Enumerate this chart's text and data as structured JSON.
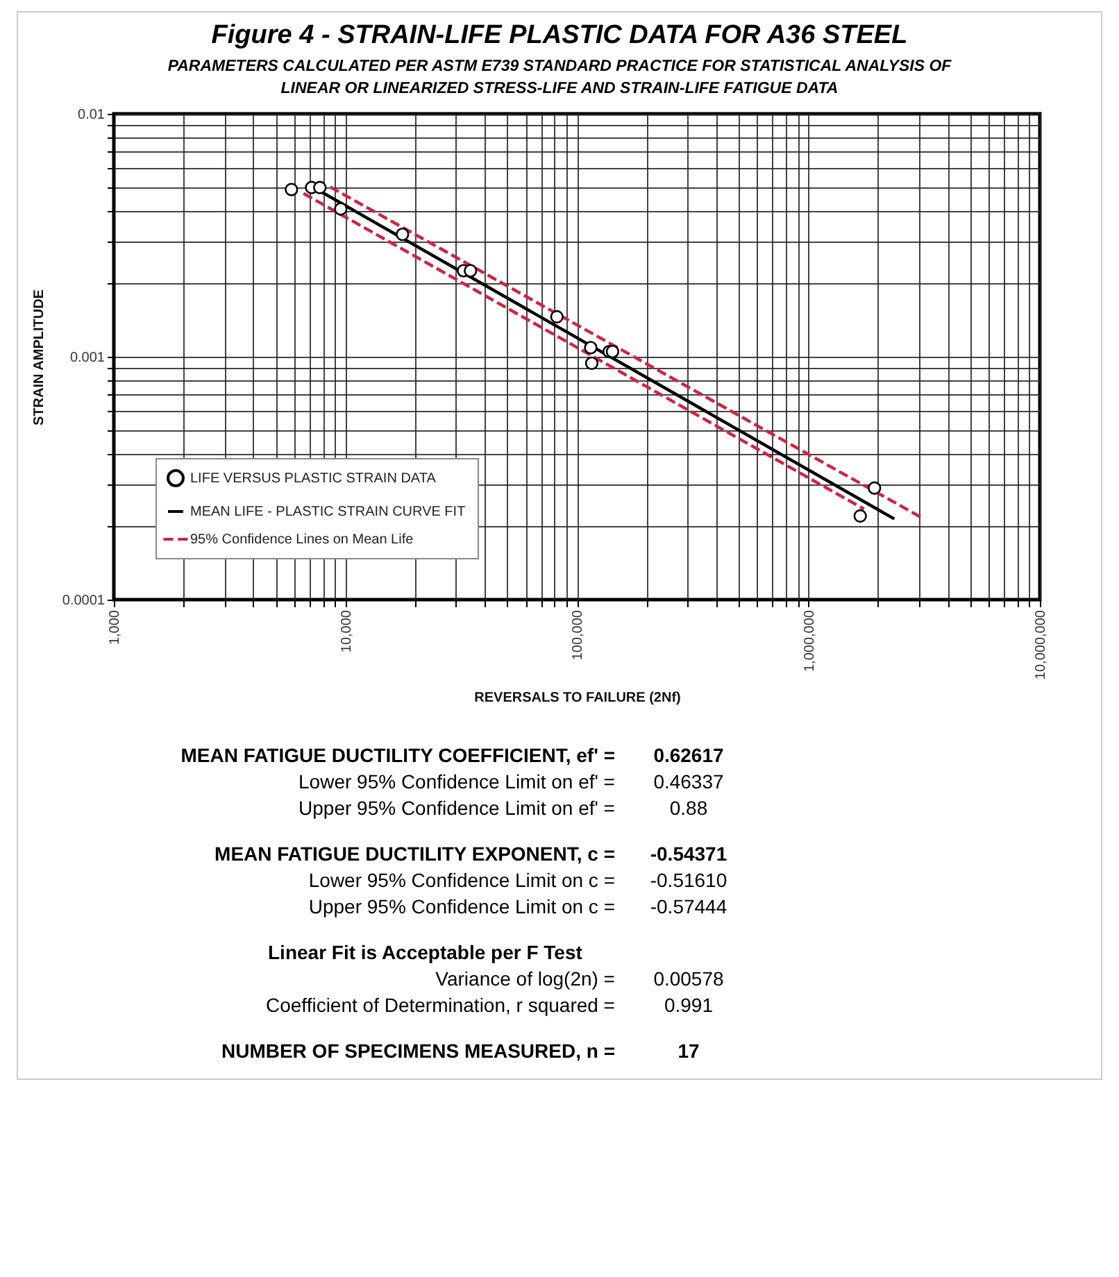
{
  "chart_data": {
    "type": "scatter",
    "title": "Figure 4 - STRAIN-LIFE PLASTIC DATA FOR A36 STEEL",
    "subtitle": "PARAMETERS CALCULATED PER ASTM E739 STANDARD PRACTICE FOR STATISTICAL ANALYSIS OF LINEAR OR LINEARIZED STRESS-LIFE AND STRAIN-LIFE FATIGUE DATA",
    "xlabel": "REVERSALS TO FAILURE (2Nf)",
    "ylabel": "STRAIN AMPLITUDE",
    "log": "xy",
    "grid": true,
    "legend": "bottom left",
    "xlim": [
      1000,
      10000000
    ],
    "ylim": [
      0.0001,
      0.01
    ],
    "xticks": [
      {
        "value": 1000,
        "label": "1,000"
      },
      {
        "value": 2000,
        "label": null
      },
      {
        "value": 3000,
        "label": null
      },
      {
        "value": 4000,
        "label": null
      },
      {
        "value": 5000,
        "label": null
      },
      {
        "value": 6000,
        "label": null
      },
      {
        "value": 7000,
        "label": null
      },
      {
        "value": 8000,
        "label": null
      },
      {
        "value": 9000,
        "label": null
      },
      {
        "value": 10000,
        "label": "10,000"
      },
      {
        "value": 20000,
        "label": null
      },
      {
        "value": 30000,
        "label": null
      },
      {
        "value": 40000,
        "label": null
      },
      {
        "value": 50000,
        "label": null
      },
      {
        "value": 60000,
        "label": null
      },
      {
        "value": 70000,
        "label": null
      },
      {
        "value": 80000,
        "label": null
      },
      {
        "value": 90000,
        "label": null
      },
      {
        "value": 100000,
        "label": "100,000"
      },
      {
        "value": 200000,
        "label": null
      },
      {
        "value": 300000,
        "label": null
      },
      {
        "value": 400000,
        "label": null
      },
      {
        "value": 500000,
        "label": null
      },
      {
        "value": 600000,
        "label": null
      },
      {
        "value": 700000,
        "label": null
      },
      {
        "value": 800000,
        "label": null
      },
      {
        "value": 900000,
        "label": null
      },
      {
        "value": 1000000,
        "label": "1,000,000"
      },
      {
        "value": 2000000,
        "label": null
      },
      {
        "value": 3000000,
        "label": null
      },
      {
        "value": 4000000,
        "label": null
      },
      {
        "value": 5000000,
        "label": null
      },
      {
        "value": 6000000,
        "label": null
      },
      {
        "value": 7000000,
        "label": null
      },
      {
        "value": 8000000,
        "label": null
      },
      {
        "value": 9000000,
        "label": null
      },
      {
        "value": 10000000,
        "label": "10,000,000"
      }
    ],
    "yticks": [
      0.0001,
      {
        "value": 0.0002,
        "label": null
      },
      {
        "value": 0.0003,
        "label": null
      },
      {
        "value": 0.0004,
        "label": null
      },
      {
        "value": 0.0005,
        "label": null
      },
      {
        "value": 0.0006,
        "label": null
      },
      {
        "value": 0.0007,
        "label": null
      },
      {
        "value": 0.0008,
        "label": null
      },
      {
        "value": 0.0009,
        "label": null
      },
      0.001,
      {
        "value": 0.002,
        "label": null
      },
      {
        "value": 0.003,
        "label": null
      },
      {
        "value": 0.004,
        "label": null
      },
      {
        "value": 0.005,
        "label": null
      },
      {
        "value": 0.006,
        "label": null
      },
      {
        "value": 0.007,
        "label": null
      },
      {
        "value": 0.008,
        "label": null
      },
      {
        "value": 0.009,
        "label": null
      },
      0.01
    ],
    "series": [
      {
        "name": "LIFE VERSUS PLASTIC STRAIN DATA",
        "marker": "circle",
        "color": "#000000",
        "x": [
          5850,
          7150,
          7760,
          9550,
          17650,
          32400,
          34700,
          82000,
          114800,
          116000,
          138000,
          142600,
          1675000,
          1930000
        ],
        "values": [
          0.00488,
          0.00497,
          0.00497,
          0.00406,
          0.00319,
          0.00226,
          0.00226,
          0.00146,
          0.00109,
          0.00094,
          0.00105,
          0.00105,
          0.000221,
          0.000288
        ]
      },
      {
        "name": "MEAN LIFE - PLASTIC STRAIN CURVE FIT",
        "type": "line",
        "marker": "none",
        "line_style": "solid",
        "color": "#000000",
        "x": [
          7500,
          2350000
        ],
        "values": [
          0.0049,
          0.000215
        ]
      },
      {
        "name": "95% Confidence Lines on Mean Life",
        "type": "line",
        "marker": "none",
        "line_style": "dashed",
        "color": "#d4213d",
        "x": [
          8600,
          3050000
        ],
        "values": [
          0.005,
          0.000219
        ]
      },
      {
        "type": "line",
        "marker": "none",
        "line_style": "dashed",
        "color": "#d4213d",
        "x": [
          6600,
          1740000
        ],
        "values": [
          0.0047,
          0.000236
        ]
      }
    ],
    "annotations": [
      "MEAN FATIGUE DUCTILITY COEFFICIENT, ef' = 0.62617",
      "Lower 95% Confidence Limit on ef' = 0.46337",
      "Upper 95% Confidence Limit on ef' = 0.88",
      "MEAN FATIGUE DUCTILITY EXPONENT, c = -0.54371",
      "Lower 95% Confidence Limit on c = -0.51610",
      "Upper 95% Confidence Limit on c = -0.57444",
      "Linear Fit is Acceptable per F Test",
      "Variance of log(2n) = 0.00578",
      "Coefficient of Determination, r squared = 0.991",
      "NUMBER OF SPECIMENS MEASURED, n = 17"
    ]
  }
}
